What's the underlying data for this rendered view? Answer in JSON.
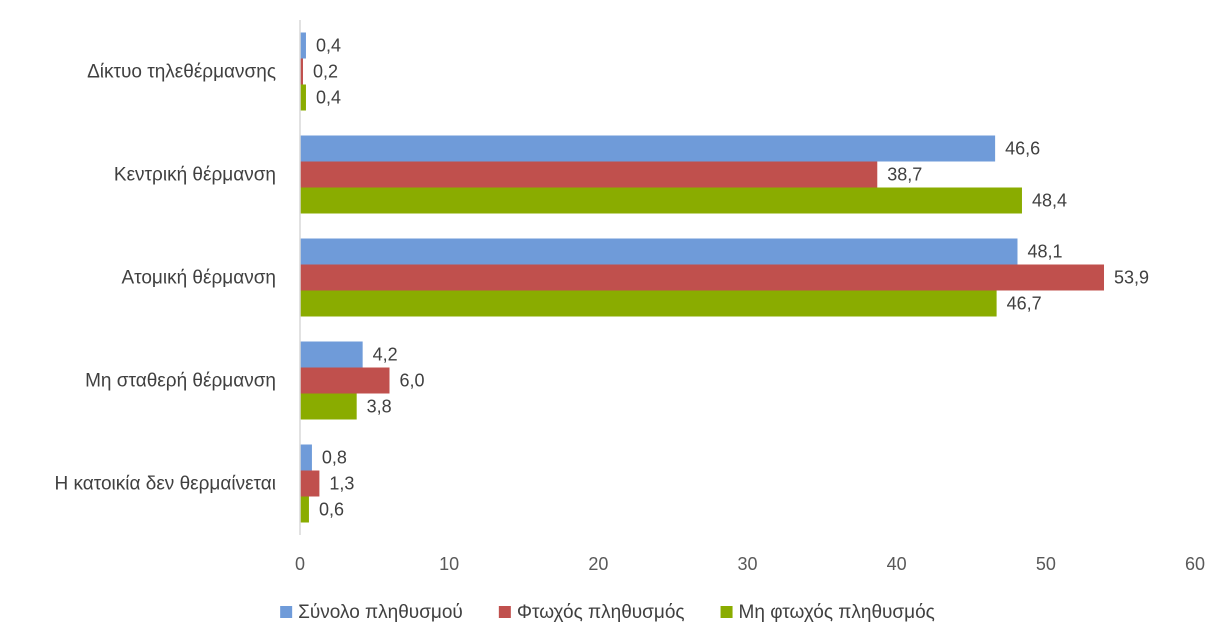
{
  "chart_data": {
    "type": "bar",
    "orientation": "horizontal",
    "categories": [
      "Δίκτυο τηλεθέρμανσης",
      "Κεντρική θέρμανση",
      "Ατομική θέρμανση",
      "Μη σταθερή θέρμανση",
      "Η κατοικία δεν θερμαίνεται"
    ],
    "series": [
      {
        "name": "Σύνολο πληθυσμού",
        "color": "#6f9bd9",
        "values": [
          0.4,
          46.6,
          48.1,
          4.2,
          0.8
        ],
        "labels": [
          "0,4",
          "46,6",
          "48,1",
          "4,2",
          "0,8"
        ]
      },
      {
        "name": "Φτωχός πληθυσμός",
        "color": "#c0504d",
        "values": [
          0.2,
          38.7,
          53.9,
          6.0,
          1.3
        ],
        "labels": [
          "0,2",
          "38,7",
          "53,9",
          "6,0",
          "1,3"
        ]
      },
      {
        "name": "Μη φτωχός πληθυσμός",
        "color": "#8aac00",
        "values": [
          0.4,
          48.4,
          46.7,
          3.8,
          0.6
        ],
        "labels": [
          "0,4",
          "48,4",
          "46,7",
          "3,8",
          "0,6"
        ]
      }
    ],
    "xlim": [
      0,
      60
    ],
    "xticks": [
      0,
      10,
      20,
      30,
      40,
      50,
      60
    ],
    "xtick_labels": [
      "0",
      "10",
      "20",
      "30",
      "40",
      "50",
      "60"
    ],
    "title": "",
    "xlabel": "",
    "ylabel": "",
    "grid": false,
    "legend_position": "bottom"
  }
}
